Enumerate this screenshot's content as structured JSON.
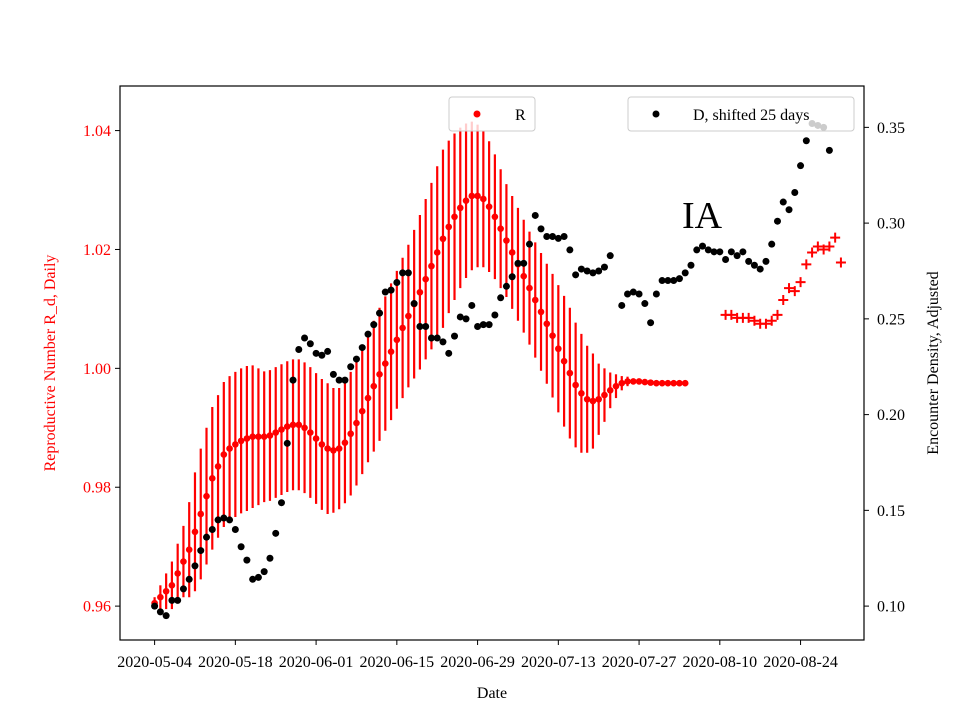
{
  "chart_data": {
    "type": "scatter",
    "annotation": "IA",
    "xlabel": "Date",
    "ylabel_left": "Reproductive Number R_d, Daily",
    "ylabel_right": "Encounter Density, Adjusted",
    "x_ticks": [
      "2020-05-04",
      "2020-05-18",
      "2020-06-01",
      "2020-06-15",
      "2020-06-29",
      "2020-07-13",
      "2020-07-27",
      "2020-08-10",
      "2020-08-24"
    ],
    "y_left_ticks": [
      "0.96",
      "0.98",
      "1.00",
      "1.02",
      "1.04"
    ],
    "y_right_ticks": [
      "0.10",
      "0.15",
      "0.20",
      "0.25",
      "0.30",
      "0.35"
    ],
    "x_range": [
      "2020-04-28",
      "2020-09-04"
    ],
    "y_left_range": [
      0.9543,
      1.0475
    ],
    "y_right_range": [
      0.0823,
      0.3716
    ],
    "colors": {
      "R": "#ff0000",
      "D": "#000000",
      "left_axis_text": "#ff0000"
    },
    "legend": [
      {
        "label": "R",
        "marker": "dot",
        "color": "#ff0000",
        "placement": "top-center"
      },
      {
        "label": "D, shifted 25 days",
        "marker": "dot",
        "color": "#000000",
        "placement": "top-right"
      }
    ],
    "r_start": "2020-05-04",
    "r_values": [
      0.9605,
      0.9615,
      0.9625,
      0.9635,
      0.9655,
      0.9675,
      0.9695,
      0.9725,
      0.9755,
      0.9785,
      0.9815,
      0.9835,
      0.9855,
      0.9865,
      0.9872,
      0.9878,
      0.9882,
      0.9885,
      0.9885,
      0.9885,
      0.9887,
      0.9892,
      0.9897,
      0.9902,
      0.9905,
      0.9905,
      0.99,
      0.9892,
      0.9882,
      0.9872,
      0.9865,
      0.9862,
      0.9865,
      0.9875,
      0.989,
      0.9908,
      0.9928,
      0.995,
      0.997,
      0.999,
      1.0008,
      1.0028,
      1.0048,
      1.0068,
      1.0088,
      1.0108,
      1.0128,
      1.015,
      1.0172,
      1.0195,
      1.0218,
      1.0238,
      1.0255,
      1.027,
      1.0282,
      1.029,
      1.029,
      1.0285,
      1.0272,
      1.0255,
      1.0235,
      1.0215,
      1.0195,
      1.0175,
      1.0155,
      1.0135,
      1.0115,
      1.0095,
      1.0075,
      1.0055,
      1.0033,
      1.0012,
      0.9992,
      0.9972,
      0.9958,
      0.9948,
      0.9945,
      0.9948,
      0.9955,
      0.9963,
      0.997,
      0.9975,
      0.9978,
      0.9978,
      0.9978,
      0.9977,
      0.9976,
      0.9975,
      0.9975,
      0.9975,
      0.9975,
      0.9975,
      0.9975
    ],
    "r_spread": [
      0.001,
      0.002,
      0.003,
      0.004,
      0.005,
      0.006,
      0.008,
      0.01,
      0.011,
      0.0115,
      0.012,
      0.012,
      0.0122,
      0.0122,
      0.0122,
      0.0122,
      0.0122,
      0.012,
      0.0115,
      0.011,
      0.011,
      0.011,
      0.011,
      0.011,
      0.011,
      0.011,
      0.011,
      0.011,
      0.011,
      0.011,
      0.011,
      0.0105,
      0.0102,
      0.0102,
      0.0104,
      0.0105,
      0.0106,
      0.0108,
      0.011,
      0.0112,
      0.0113,
      0.0115,
      0.0116,
      0.0118,
      0.012,
      0.0125,
      0.013,
      0.0135,
      0.014,
      0.0145,
      0.015,
      0.0145,
      0.014,
      0.0135,
      0.013,
      0.0125,
      0.012,
      0.0115,
      0.011,
      0.0105,
      0.01,
      0.0095,
      0.0095,
      0.0095,
      0.0095,
      0.0095,
      0.0097,
      0.0099,
      0.0101,
      0.0104,
      0.0107,
      0.011,
      0.011,
      0.0105,
      0.01,
      0.009,
      0.008,
      0.006,
      0.0045,
      0.003,
      0.002,
      0.0012,
      0.0008,
      0.0005,
      0.0003,
      0.0002,
      0.0001,
      0.0001,
      0.0001,
      0.0001,
      0.0001,
      0.0001,
      0.0001
    ],
    "r_forecast": [
      [
        "2020-08-11",
        1.009
      ],
      [
        "2020-08-12",
        1.009
      ],
      [
        "2020-08-13",
        1.0085
      ],
      [
        "2020-08-14",
        1.0085
      ],
      [
        "2020-08-15",
        1.0085
      ],
      [
        "2020-08-16",
        1.008
      ],
      [
        "2020-08-17",
        1.0075
      ],
      [
        "2020-08-18",
        1.0075
      ],
      [
        "2020-08-19",
        1.008
      ],
      [
        "2020-08-20",
        1.009
      ],
      [
        "2020-08-21",
        1.0115
      ],
      [
        "2020-08-22",
        1.0135
      ],
      [
        "2020-08-23",
        1.013
      ],
      [
        "2020-08-24",
        1.0145
      ],
      [
        "2020-08-25",
        1.0175
      ],
      [
        "2020-08-26",
        1.0195
      ],
      [
        "2020-08-27",
        1.0205
      ],
      [
        "2020-08-28",
        1.02
      ],
      [
        "2020-08-29",
        1.0205
      ],
      [
        "2020-08-30",
        1.022
      ],
      [
        "2020-08-31",
        1.0178
      ]
    ],
    "d_points": [
      [
        "2020-05-04",
        0.1
      ],
      [
        "2020-05-05",
        0.097
      ],
      [
        "2020-05-06",
        0.095
      ],
      [
        "2020-05-07",
        0.103
      ],
      [
        "2020-05-08",
        0.103
      ],
      [
        "2020-05-09",
        0.109
      ],
      [
        "2020-05-10",
        0.114
      ],
      [
        "2020-05-11",
        0.121
      ],
      [
        "2020-05-12",
        0.129
      ],
      [
        "2020-05-13",
        0.136
      ],
      [
        "2020-05-14",
        0.14
      ],
      [
        "2020-05-15",
        0.145
      ],
      [
        "2020-05-16",
        0.146
      ],
      [
        "2020-05-17",
        0.145
      ],
      [
        "2020-05-18",
        0.14
      ],
      [
        "2020-05-19",
        0.131
      ],
      [
        "2020-05-20",
        0.124
      ],
      [
        "2020-05-21",
        0.114
      ],
      [
        "2020-05-22",
        0.115
      ],
      [
        "2020-05-23",
        0.118
      ],
      [
        "2020-05-24",
        0.125
      ],
      [
        "2020-05-25",
        0.138
      ],
      [
        "2020-05-26",
        0.154
      ],
      [
        "2020-05-27",
        0.185
      ],
      [
        "2020-05-28",
        0.218
      ],
      [
        "2020-05-29",
        0.234
      ],
      [
        "2020-05-30",
        0.24
      ],
      [
        "2020-05-31",
        0.237
      ],
      [
        "2020-06-01",
        0.232
      ],
      [
        "2020-06-02",
        0.231
      ],
      [
        "2020-06-03",
        0.233
      ],
      [
        "2020-06-04",
        0.221
      ],
      [
        "2020-06-05",
        0.218
      ],
      [
        "2020-06-06",
        0.218
      ],
      [
        "2020-06-07",
        0.225
      ],
      [
        "2020-06-08",
        0.229
      ],
      [
        "2020-06-09",
        0.235
      ],
      [
        "2020-06-10",
        0.242
      ],
      [
        "2020-06-11",
        0.247
      ],
      [
        "2020-06-12",
        0.253
      ],
      [
        "2020-06-13",
        0.264
      ],
      [
        "2020-06-14",
        0.265
      ],
      [
        "2020-06-15",
        0.269
      ],
      [
        "2020-06-16",
        0.274
      ],
      [
        "2020-06-17",
        0.274
      ],
      [
        "2020-06-18",
        0.258
      ],
      [
        "2020-06-19",
        0.246
      ],
      [
        "2020-06-20",
        0.246
      ],
      [
        "2020-06-21",
        0.24
      ],
      [
        "2020-06-22",
        0.24
      ],
      [
        "2020-06-23",
        0.238
      ],
      [
        "2020-06-24",
        0.232
      ],
      [
        "2020-06-25",
        0.241
      ],
      [
        "2020-06-26",
        0.251
      ],
      [
        "2020-06-27",
        0.25
      ],
      [
        "2020-06-28",
        0.257
      ],
      [
        "2020-06-29",
        0.246
      ],
      [
        "2020-06-30",
        0.247
      ],
      [
        "2020-07-01",
        0.247
      ],
      [
        "2020-07-02",
        0.252
      ],
      [
        "2020-07-03",
        0.261
      ],
      [
        "2020-07-04",
        0.267
      ],
      [
        "2020-07-05",
        0.272
      ],
      [
        "2020-07-06",
        0.279
      ],
      [
        "2020-07-07",
        0.279
      ],
      [
        "2020-07-08",
        0.289
      ],
      [
        "2020-07-09",
        0.304
      ],
      [
        "2020-07-10",
        0.297
      ],
      [
        "2020-07-11",
        0.293
      ],
      [
        "2020-07-12",
        0.293
      ],
      [
        "2020-07-13",
        0.292
      ],
      [
        "2020-07-14",
        0.293
      ],
      [
        "2020-07-15",
        0.286
      ],
      [
        "2020-07-16",
        0.273
      ],
      [
        "2020-07-17",
        0.276
      ],
      [
        "2020-07-18",
        0.275
      ],
      [
        "2020-07-19",
        0.274
      ],
      [
        "2020-07-20",
        0.275
      ],
      [
        "2020-07-21",
        0.277
      ],
      [
        "2020-07-22",
        0.283
      ],
      [
        "2020-07-24",
        0.257
      ],
      [
        "2020-07-25",
        0.263
      ],
      [
        "2020-07-26",
        0.264
      ],
      [
        "2020-07-27",
        0.263
      ],
      [
        "2020-07-28",
        0.258
      ],
      [
        "2020-07-29",
        0.248
      ],
      [
        "2020-07-30",
        0.263
      ],
      [
        "2020-07-31",
        0.27
      ],
      [
        "2020-08-01",
        0.27
      ],
      [
        "2020-08-02",
        0.27
      ],
      [
        "2020-08-03",
        0.271
      ],
      [
        "2020-08-04",
        0.274
      ],
      [
        "2020-08-05",
        0.278
      ],
      [
        "2020-08-06",
        0.286
      ],
      [
        "2020-08-07",
        0.288
      ],
      [
        "2020-08-08",
        0.286
      ],
      [
        "2020-08-09",
        0.285
      ],
      [
        "2020-08-10",
        0.285
      ],
      [
        "2020-08-11",
        0.281
      ],
      [
        "2020-08-12",
        0.285
      ],
      [
        "2020-08-13",
        0.283
      ],
      [
        "2020-08-14",
        0.285
      ],
      [
        "2020-08-15",
        0.28
      ],
      [
        "2020-08-16",
        0.278
      ],
      [
        "2020-08-17",
        0.276
      ],
      [
        "2020-08-18",
        0.28
      ],
      [
        "2020-08-19",
        0.289
      ],
      [
        "2020-08-20",
        0.301
      ],
      [
        "2020-08-21",
        0.311
      ],
      [
        "2020-08-22",
        0.307
      ],
      [
        "2020-08-23",
        0.316
      ],
      [
        "2020-08-24",
        0.33
      ],
      [
        "2020-08-25",
        0.343
      ],
      [
        "2020-08-26",
        0.352
      ],
      [
        "2020-08-27",
        0.351
      ],
      [
        "2020-08-28",
        0.35
      ],
      [
        "2020-08-29",
        0.338
      ]
    ]
  }
}
